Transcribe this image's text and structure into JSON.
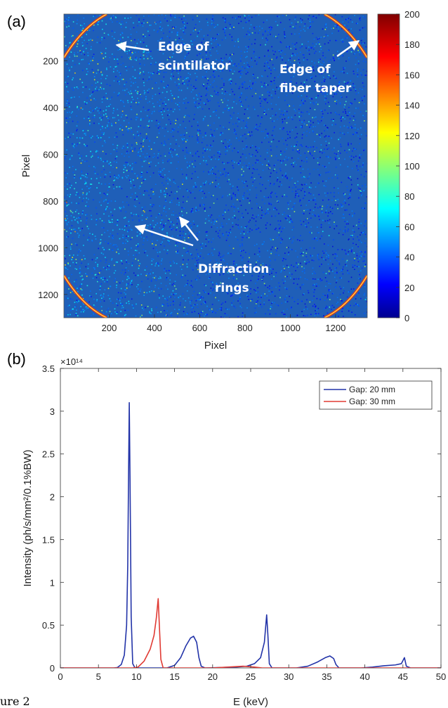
{
  "figure": {
    "caption_fragment": "ure 2"
  },
  "chart_data": [
    {
      "type": "heatmap",
      "panel_label": "(a)",
      "xlabel": "Pixel",
      "ylabel": "Pixel",
      "xlim": [
        0,
        1340
      ],
      "ylim": [
        1300,
        0
      ],
      "x_ticks": [
        200,
        400,
        600,
        800,
        1000,
        1200
      ],
      "y_ticks": [
        200,
        400,
        600,
        800,
        1000,
        1200
      ],
      "colorbar": {
        "min": 0,
        "max": 200,
        "ticks": [
          0,
          20,
          40,
          60,
          80,
          100,
          120,
          140,
          160,
          180,
          200
        ],
        "colormap": "jet"
      },
      "background_level": 30,
      "annotations": [
        {
          "lines": [
            "Edge of",
            "scintillator"
          ]
        },
        {
          "lines": [
            "Edge of",
            "fiber taper"
          ]
        },
        {
          "lines": [
            "Diffraction",
            "rings"
          ]
        }
      ]
    },
    {
      "type": "line",
      "panel_label": "(b)",
      "xlabel": "E (keV)",
      "ylabel": "Intensity (ph/s/mm²/0.1%BW)",
      "xlim": [
        0,
        50
      ],
      "ylim": [
        0,
        3.5
      ],
      "y_scale_label": "×10¹⁴",
      "x_ticks": [
        0,
        5,
        10,
        15,
        20,
        25,
        30,
        35,
        40,
        45,
        50
      ],
      "y_ticks": [
        0,
        0.5,
        1,
        1.5,
        2,
        2.5,
        3,
        3.5
      ],
      "legend_position": "top-right",
      "series": [
        {
          "name": "Gap: 20 mm",
          "color": "#2233a8",
          "points": [
            [
              0,
              0
            ],
            [
              7,
              0
            ],
            [
              7.5,
              0.005
            ],
            [
              8,
              0.04
            ],
            [
              8.4,
              0.15
            ],
            [
              8.7,
              0.5
            ],
            [
              8.85,
              1.2
            ],
            [
              8.95,
              2.2
            ],
            [
              9.05,
              3.1
            ],
            [
              9.15,
              2.2
            ],
            [
              9.3,
              0.6
            ],
            [
              9.5,
              0.05
            ],
            [
              9.8,
              0
            ],
            [
              14,
              0
            ],
            [
              15,
              0.03
            ],
            [
              15.8,
              0.12
            ],
            [
              16.5,
              0.26
            ],
            [
              17.1,
              0.35
            ],
            [
              17.5,
              0.37
            ],
            [
              17.9,
              0.3
            ],
            [
              18.2,
              0.12
            ],
            [
              18.5,
              0.02
            ],
            [
              19,
              0
            ],
            [
              21,
              0.005
            ],
            [
              23,
              0.01
            ],
            [
              24.5,
              0.02
            ],
            [
              25.5,
              0.05
            ],
            [
              26.3,
              0.12
            ],
            [
              26.8,
              0.3
            ],
            [
              27.1,
              0.62
            ],
            [
              27.25,
              0.4
            ],
            [
              27.45,
              0.05
            ],
            [
              27.8,
              0
            ],
            [
              31,
              0
            ],
            [
              32.5,
              0.02
            ],
            [
              33.8,
              0.07
            ],
            [
              34.8,
              0.12
            ],
            [
              35.4,
              0.14
            ],
            [
              35.9,
              0.11
            ],
            [
              36.2,
              0.04
            ],
            [
              36.6,
              0
            ],
            [
              39.5,
              0
            ],
            [
              41,
              0.01
            ],
            [
              42.5,
              0.025
            ],
            [
              44,
              0.035
            ],
            [
              44.8,
              0.05
            ],
            [
              45.2,
              0.12
            ],
            [
              45.45,
              0.02
            ],
            [
              46,
              0
            ],
            [
              50,
              0
            ]
          ]
        },
        {
          "name": "Gap: 30 mm",
          "color": "#e03a33",
          "points": [
            [
              0,
              0
            ],
            [
              9.5,
              0
            ],
            [
              10.2,
              0.01
            ],
            [
              11,
              0.08
            ],
            [
              11.8,
              0.22
            ],
            [
              12.3,
              0.38
            ],
            [
              12.6,
              0.58
            ],
            [
              12.85,
              0.81
            ],
            [
              13.0,
              0.5
            ],
            [
              13.2,
              0.1
            ],
            [
              13.5,
              0
            ],
            [
              20,
              0
            ],
            [
              22,
              0.01
            ],
            [
              24,
              0.02
            ],
            [
              25.5,
              0.01
            ],
            [
              26.5,
              0
            ],
            [
              50,
              0
            ]
          ]
        }
      ]
    }
  ]
}
